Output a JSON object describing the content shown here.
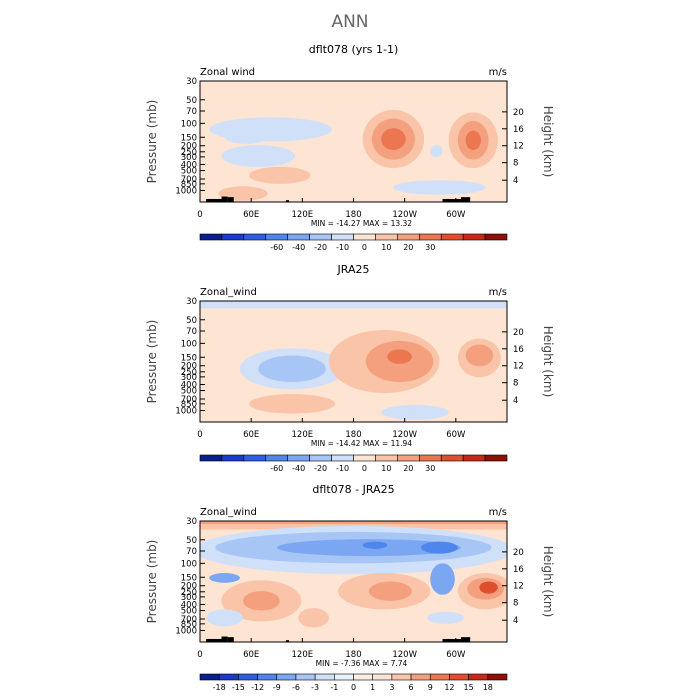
{
  "figure": {
    "title": "ANN"
  },
  "chart_data": [
    {
      "type": "contour",
      "title": "dflt078 (yrs 1-1)",
      "field_label": "Zonal wind",
      "units": "m/s",
      "ylabel_left": "Pressure (mb)",
      "ylabel_right": "Height (km)",
      "x_ticks": [
        "0",
        "60E",
        "120E",
        "180",
        "120W",
        "60W"
      ],
      "pressure_ticks": [
        "30",
        "50",
        "70",
        "100",
        "150",
        "200",
        "250",
        "300",
        "400",
        "500",
        "700",
        "850",
        "1000"
      ],
      "height_ticks": [
        "4",
        "8",
        "12",
        "16",
        "20"
      ],
      "stats_text": "MIN = -14.27   MAX =  13.32",
      "min": -14.27,
      "max": 13.32,
      "colorbar_labels": [
        "-60",
        "-40",
        "-20",
        "-10",
        "0",
        "10",
        "20",
        "30"
      ],
      "colorbar_colors": [
        "#0a1f8f",
        "#1a3cc8",
        "#2e5fe0",
        "#4f86ee",
        "#7aa6f2",
        "#a7c5f5",
        "#cfe0f8",
        "#fde4d3",
        "#f9c4a8",
        "#f4a07f",
        "#ec7650",
        "#e04e2e",
        "#c42a16",
        "#8e0f05"
      ],
      "orography": true
    },
    {
      "type": "contour",
      "title": "JRA25",
      "field_label": "Zonal_wind",
      "units": "m/s",
      "ylabel_left": "Pressure (mb)",
      "ylabel_right": "Height (km)",
      "x_ticks": [
        "0",
        "60E",
        "120E",
        "180",
        "120W",
        "60W"
      ],
      "pressure_ticks": [
        "30",
        "50",
        "70",
        "100",
        "150",
        "200",
        "250",
        "300",
        "400",
        "500",
        "700",
        "850",
        "1000"
      ],
      "height_ticks": [
        "4",
        "8",
        "12",
        "16",
        "20"
      ],
      "stats_text": "MIN = -14.42   MAX =  11.94",
      "min": -14.42,
      "max": 11.94,
      "colorbar_labels": [
        "-60",
        "-40",
        "-20",
        "-10",
        "0",
        "10",
        "20",
        "30"
      ],
      "colorbar_colors": [
        "#0a1f8f",
        "#1a3cc8",
        "#2e5fe0",
        "#4f86ee",
        "#7aa6f2",
        "#a7c5f5",
        "#cfe0f8",
        "#fde4d3",
        "#f9c4a8",
        "#f4a07f",
        "#ec7650",
        "#e04e2e",
        "#c42a16",
        "#8e0f05"
      ],
      "orography": false
    },
    {
      "type": "contour",
      "title": "dflt078 - JRA25",
      "field_label": "Zonal_wind",
      "units": "m/s",
      "ylabel_left": "Pressure (mb)",
      "ylabel_right": "Height (km)",
      "x_ticks": [
        "0",
        "60E",
        "120E",
        "180",
        "120W",
        "60W"
      ],
      "pressure_ticks": [
        "30",
        "50",
        "70",
        "100",
        "150",
        "200",
        "250",
        "300",
        "400",
        "500",
        "700",
        "850",
        "1000"
      ],
      "height_ticks": [
        "4",
        "8",
        "12",
        "16",
        "20"
      ],
      "stats_text": "MIN =  -7.36   MAX =    7.74",
      "min": -7.36,
      "max": 7.74,
      "colorbar_labels": [
        "-18",
        "-15",
        "-12",
        "-9",
        "-6",
        "-3",
        "-1",
        "0",
        "1",
        "3",
        "6",
        "9",
        "12",
        "15",
        "18"
      ],
      "colorbar_colors": [
        "#0a1f8f",
        "#1a3cc8",
        "#2e5fe0",
        "#4f86ee",
        "#7aa6f2",
        "#a7c5f5",
        "#cfe0f8",
        "#e8f0fb",
        "#fbece2",
        "#fde4d3",
        "#f9c4a8",
        "#f4a07f",
        "#ec7650",
        "#e04e2e",
        "#c42a16",
        "#8e0f05"
      ],
      "orography": true
    }
  ]
}
